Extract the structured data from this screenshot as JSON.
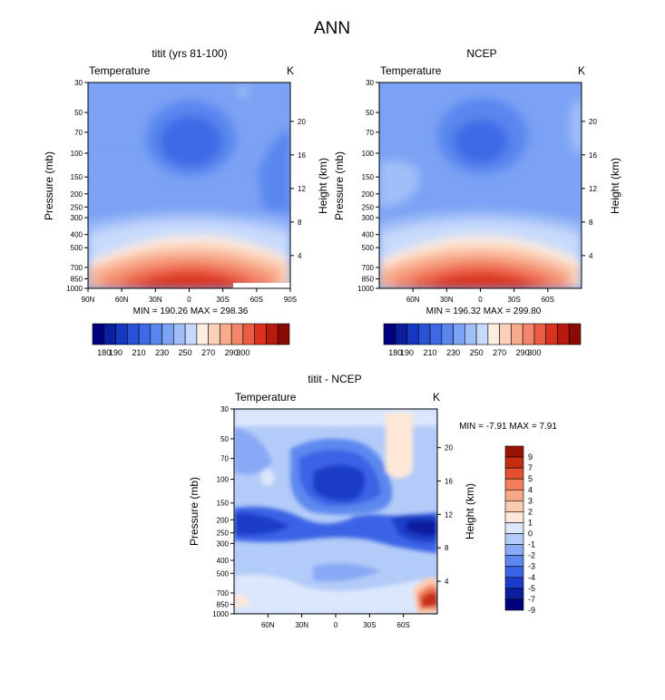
{
  "figure_title": "ANN",
  "colors": {
    "abs_scale": [
      "#00007f",
      "#0a1e9e",
      "#1637c0",
      "#2a52d6",
      "#3c6ae6",
      "#5a86ef",
      "#7ba2f4",
      "#a0bef8",
      "#c8dafb",
      "#fdeee0",
      "#fcd0b8",
      "#f8ac8c",
      "#f3866a",
      "#ea5c43",
      "#d8321f",
      "#b81a0e",
      "#8a0a04"
    ],
    "diff_scale": [
      "#00007f",
      "#0a1e9e",
      "#1a3cc8",
      "#3a64e6",
      "#5d88ef",
      "#88a9f5",
      "#b3cbf8",
      "#dbe7fc",
      "#fde8d8",
      "#fbcdb0",
      "#f7a786",
      "#f27d5b",
      "#e2502f",
      "#c42d12",
      "#9a1204"
    ]
  },
  "panels": [
    {
      "key": "model",
      "title": "titit (yrs 81-100)",
      "left_label": "Temperature",
      "right_label": "K",
      "min_max": "MIN = 190.26   MAX = 298.36",
      "x_ticks": [
        "90N",
        "60N",
        "30N",
        "0",
        "30S",
        "60S",
        "90S"
      ]
    },
    {
      "key": "obs",
      "title": "NCEP",
      "left_label": "Temperature",
      "right_label": "K",
      "min_max": "MIN = 196.32   MAX = 299.80",
      "x_ticks": [
        "60N",
        "30N",
        "0",
        "30S",
        "60S"
      ]
    },
    {
      "key": "diff",
      "title": "titit - NCEP",
      "left_label": "Temperature",
      "right_label": "K",
      "min_max": "MIN =  -7.91   MAX =   7.91",
      "x_ticks": [
        "60N",
        "30N",
        "0",
        "30S",
        "60S"
      ]
    }
  ],
  "colorbar_abs_labels": [
    "180",
    "190",
    "210",
    "230",
    "250",
    "270",
    "290",
    "300"
  ],
  "colorbar_diff_labels": [
    "9",
    "7",
    "5",
    "4",
    "3",
    "2",
    "1",
    "0",
    "-1",
    "-2",
    "-3",
    "-4",
    "-5",
    "-7",
    "-9"
  ],
  "chart_data": [
    {
      "type": "heatmap",
      "title": "titit (yrs 81-100)",
      "xlabel": "",
      "ylabel": "Pressure (mb)",
      "y2label": "Height (km)",
      "x_tick_labels": [
        "90N",
        "60N",
        "30N",
        "0",
        "30S",
        "60S",
        "90S"
      ],
      "y_tick_labels": [
        "30",
        "50",
        "70",
        "100",
        "150",
        "200",
        "250",
        "300",
        "400",
        "500",
        "700",
        "850",
        "1000"
      ],
      "y2_tick_labels": [
        "20",
        "16",
        "12",
        "8",
        "4"
      ],
      "xlim": [
        90,
        -90
      ],
      "ylim": [
        30,
        1000
      ],
      "value_range": [
        190.26,
        298.36
      ],
      "units": "K",
      "contour_levels": [
        180,
        185,
        190,
        200,
        210,
        220,
        230,
        240,
        250,
        260,
        270,
        280,
        290,
        295,
        300
      ]
    },
    {
      "type": "heatmap",
      "title": "NCEP",
      "xlabel": "",
      "ylabel": "Pressure (mb)",
      "y2label": "Height (km)",
      "x_tick_labels": [
        "60N",
        "30N",
        "0",
        "30S",
        "60S"
      ],
      "y_tick_labels": [
        "30",
        "50",
        "70",
        "100",
        "150",
        "200",
        "250",
        "300",
        "400",
        "500",
        "700",
        "850",
        "1000"
      ],
      "y2_tick_labels": [
        "20",
        "16",
        "12",
        "8",
        "4"
      ],
      "xlim": [
        90,
        -90
      ],
      "ylim": [
        30,
        1000
      ],
      "value_range": [
        196.32,
        299.8
      ],
      "units": "K",
      "contour_levels": [
        180,
        185,
        190,
        200,
        210,
        220,
        230,
        240,
        250,
        260,
        270,
        280,
        290,
        295,
        300
      ]
    },
    {
      "type": "heatmap",
      "title": "titit - NCEP",
      "xlabel": "",
      "ylabel": "Pressure (mb)",
      "y2label": "Height (km)",
      "x_tick_labels": [
        "60N",
        "30N",
        "0",
        "30S",
        "60S"
      ],
      "y_tick_labels": [
        "30",
        "50",
        "70",
        "100",
        "150",
        "200",
        "250",
        "300",
        "400",
        "500",
        "700",
        "850",
        "1000"
      ],
      "y2_tick_labels": [
        "20",
        "16",
        "12",
        "8",
        "4"
      ],
      "xlim": [
        90,
        -90
      ],
      "ylim": [
        30,
        1000
      ],
      "value_range": [
        -7.91,
        7.91
      ],
      "units": "K",
      "contour_levels": [
        -9,
        -7,
        -5,
        -4,
        -3,
        -2,
        -1,
        0,
        1,
        2,
        3,
        4,
        5,
        7,
        9
      ]
    }
  ]
}
